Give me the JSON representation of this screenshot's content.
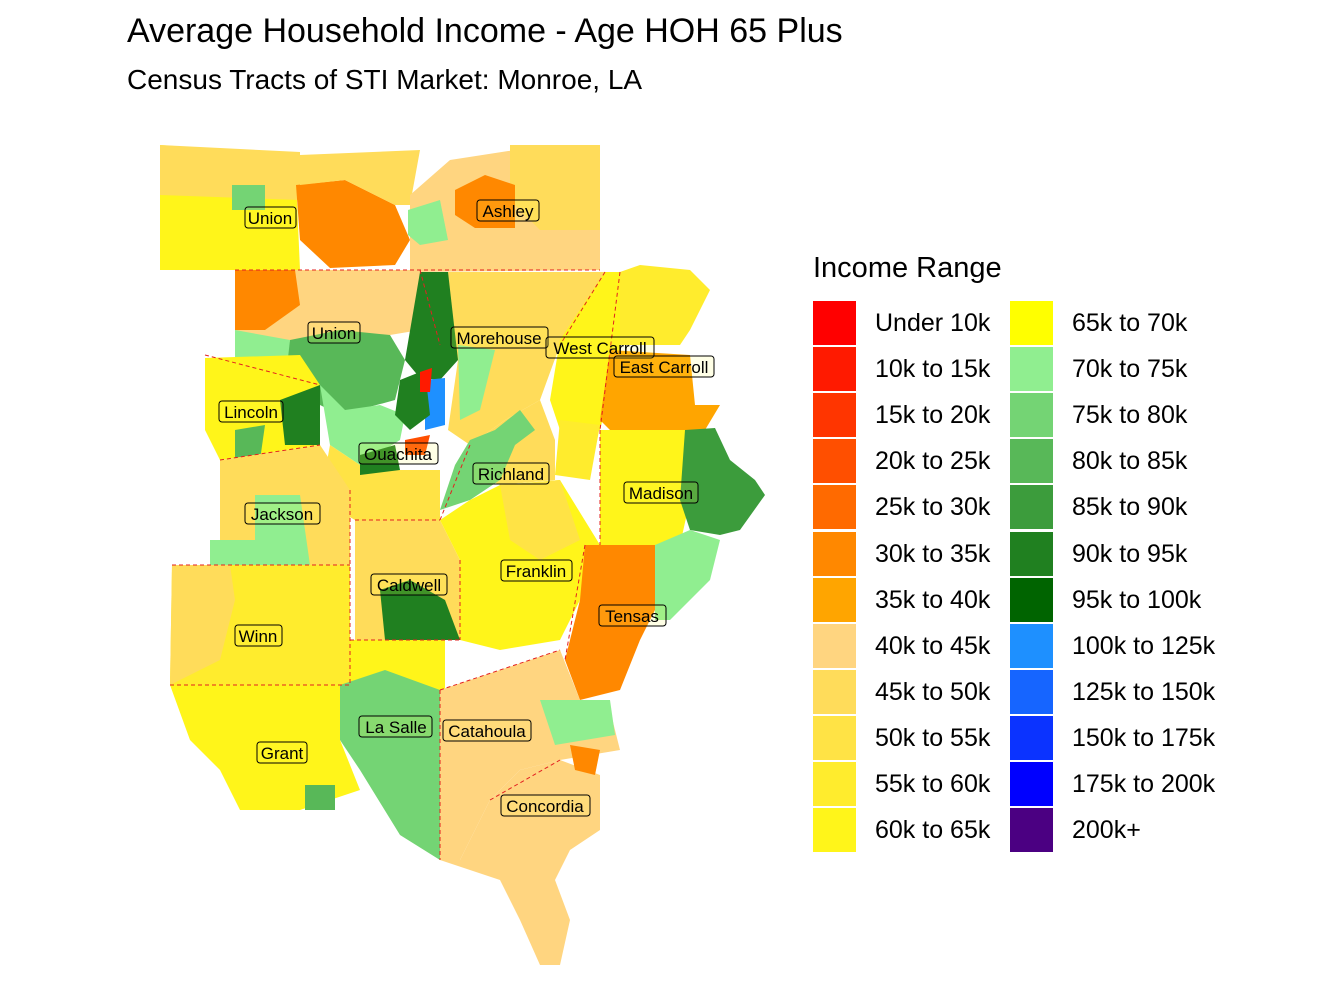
{
  "title": "Average Household Income - Age HOH 65 Plus",
  "subtitle": "Census Tracts of STI Market: Monroe, LA",
  "legend": {
    "title": "Income Range",
    "items": [
      {
        "label": "Under 10k",
        "color": "#ff0000"
      },
      {
        "label": "10k to 15k",
        "color": "#ff1a00"
      },
      {
        "label": "15k to 20k",
        "color": "#ff3500"
      },
      {
        "label": "20k to 25k",
        "color": "#ff4f00"
      },
      {
        "label": "25k to 30k",
        "color": "#ff6a00"
      },
      {
        "label": "30k to 35k",
        "color": "#ff8800"
      },
      {
        "label": "35k to 40k",
        "color": "#ffa500"
      },
      {
        "label": "40k to 45k",
        "color": "#ffd580"
      },
      {
        "label": "45k to 50k",
        "color": "#ffdc5a"
      },
      {
        "label": "50k to 55k",
        "color": "#ffe345"
      },
      {
        "label": "55k to 60k",
        "color": "#ffec2d"
      },
      {
        "label": "60k to 65k",
        "color": "#fff51a"
      },
      {
        "label": "65k to 70k",
        "color": "#ffff00"
      },
      {
        "label": "70k to 75k",
        "color": "#90ee90"
      },
      {
        "label": "75k to 80k",
        "color": "#74d474"
      },
      {
        "label": "80k to 85k",
        "color": "#58b858"
      },
      {
        "label": "85k to 90k",
        "color": "#3c9c3c"
      },
      {
        "label": "90k to 95k",
        "color": "#208020"
      },
      {
        "label": "95k to 100k",
        "color": "#006400"
      },
      {
        "label": "100k to 125k",
        "color": "#1e90ff"
      },
      {
        "label": "125k to 150k",
        "color": "#1665ff"
      },
      {
        "label": "150k to 175k",
        "color": "#0b33ff"
      },
      {
        "label": "175k to 200k",
        "color": "#0000ff"
      },
      {
        "label": "200k+",
        "color": "#4b0082"
      }
    ]
  },
  "counties": [
    "Union",
    "Ashley",
    "Union",
    "Morehouse",
    "West Carroll",
    "East Carroll",
    "Lincoln",
    "Ouachita",
    "Richland",
    "Madison",
    "Jackson",
    "Caldwell",
    "Franklin",
    "Tensas",
    "Winn",
    "La Salle",
    "Catahoula",
    "Grant",
    "Concordia"
  ]
}
